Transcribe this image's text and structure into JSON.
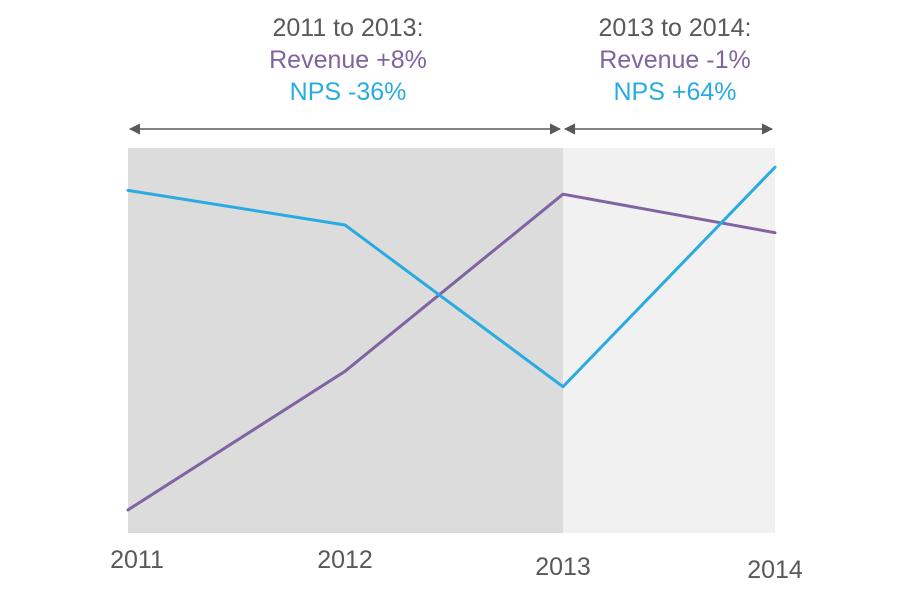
{
  "annotations": [
    {
      "heading": "2011 to 2013:",
      "revenue": "Revenue +8%",
      "nps": "NPS -36%"
    },
    {
      "heading": "2013 to 2014:",
      "revenue": "Revenue -1%",
      "nps": "NPS +64%"
    }
  ],
  "colors": {
    "revenue": "#8064a2",
    "nps": "#29abe2",
    "shade_dark": "#dcdcdc",
    "shade_light": "#f1f1f1",
    "arrow": "#595959",
    "tick_text": "#595959"
  },
  "chart_data": {
    "type": "line",
    "title": "",
    "xlabel": "",
    "ylabel": "",
    "x": [
      "2011",
      "2012",
      "2013",
      "2014"
    ],
    "ylim": [
      0,
      100
    ],
    "y_axis_visible": false,
    "grid": false,
    "legend": "none",
    "shaded_periods": [
      {
        "from": "2011",
        "to": "2013",
        "shade": "dark"
      },
      {
        "from": "2013",
        "to": "2014",
        "shade": "light"
      }
    ],
    "series": [
      {
        "key": "revenue",
        "color": "#8064a2",
        "values": [
          6,
          42,
          88,
          78
        ]
      },
      {
        "key": "nps",
        "color": "#29abe2",
        "values": [
          89,
          80,
          38,
          95
        ]
      }
    ]
  }
}
